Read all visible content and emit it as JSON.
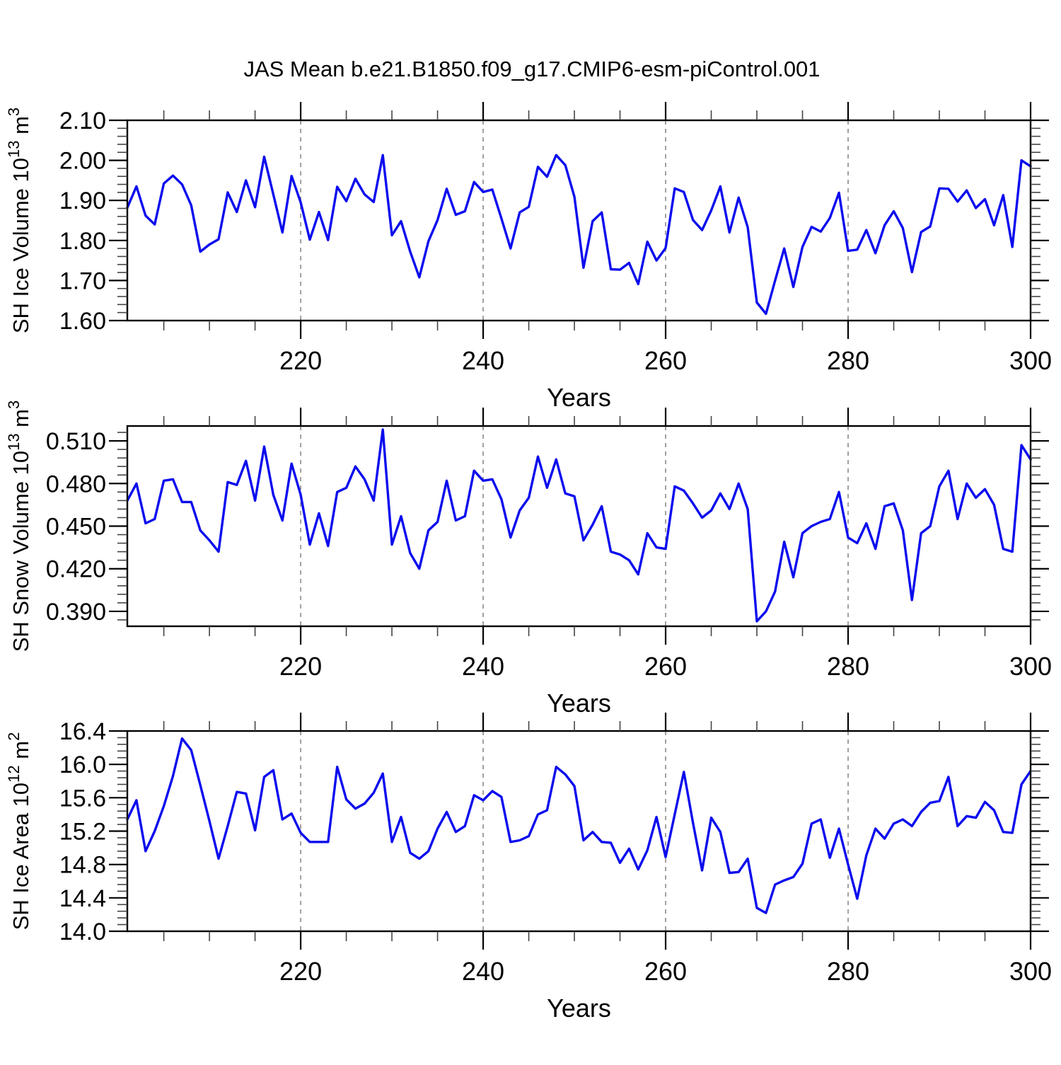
{
  "title": "JAS Mean b.e21.B1850.f09_g17.CMIP6-esm-piControl.001",
  "colors": {
    "line": "#0b0bee",
    "axis": "#000000",
    "minor_tick": "#444444",
    "grid": "#8a8a8a",
    "background": "#ffffff"
  },
  "years": [
    201,
    202,
    203,
    204,
    205,
    206,
    207,
    208,
    209,
    210,
    211,
    212,
    213,
    214,
    215,
    216,
    217,
    218,
    219,
    220,
    221,
    222,
    223,
    224,
    225,
    226,
    227,
    228,
    229,
    230,
    231,
    232,
    233,
    234,
    235,
    236,
    237,
    238,
    239,
    240,
    241,
    242,
    243,
    244,
    245,
    246,
    247,
    248,
    249,
    250,
    251,
    252,
    253,
    254,
    255,
    256,
    257,
    258,
    259,
    260,
    261,
    262,
    263,
    264,
    265,
    266,
    267,
    268,
    269,
    270,
    271,
    272,
    273,
    274,
    275,
    276,
    277,
    278,
    279,
    280,
    281,
    282,
    283,
    284,
    285,
    286,
    287,
    288,
    289,
    290,
    291,
    292,
    293,
    294,
    295,
    296,
    297,
    298,
    299,
    300
  ],
  "chart_data": [
    {
      "type": "line",
      "name": "sh-ice-volume",
      "title": "",
      "xlabel": "Years",
      "ylabel_parts": [
        {
          "t": "SH Ice Volume 10"
        },
        {
          "t": "13",
          "sup": true
        },
        {
          "t": " m"
        },
        {
          "t": "3",
          "sup": true
        }
      ],
      "xlim": [
        201,
        300
      ],
      "ylim": [
        1.6,
        2.1
      ],
      "xticks": [
        220,
        240,
        260,
        280,
        300
      ],
      "xtick_labels": [
        "220",
        "240",
        "260",
        "280",
        "300"
      ],
      "x_minor_step": 5,
      "yticks": [
        1.6,
        1.7,
        1.8,
        1.9,
        2.0,
        2.1
      ],
      "ytick_labels": [
        "1.60",
        "1.70",
        "1.80",
        "1.90",
        "2.00",
        "2.10"
      ],
      "y_minor_step": 0.02,
      "gridlines_x": [
        220,
        240,
        260,
        280
      ],
      "grid": "dashed-vertical",
      "legend": "none",
      "values": [
        1.882,
        1.935,
        1.862,
        1.84,
        1.942,
        1.962,
        1.94,
        1.888,
        1.772,
        1.79,
        1.803,
        1.92,
        1.871,
        1.95,
        1.883,
        2.009,
        1.915,
        1.82,
        1.961,
        1.895,
        1.802,
        1.871,
        1.801,
        1.934,
        1.898,
        1.954,
        1.915,
        1.896,
        2.013,
        1.813,
        1.848,
        1.772,
        1.708,
        1.798,
        1.851,
        1.929,
        1.864,
        1.873,
        1.946,
        1.921,
        1.927,
        1.855,
        1.78,
        1.87,
        1.884,
        1.984,
        1.959,
        2.013,
        1.988,
        1.909,
        1.732,
        1.848,
        1.87,
        1.728,
        1.727,
        1.744,
        1.691,
        1.797,
        1.75,
        1.781,
        1.93,
        1.921,
        1.851,
        1.826,
        1.875,
        1.935,
        1.82,
        1.907,
        1.833,
        1.645,
        1.617,
        1.7,
        1.78,
        1.684,
        1.784,
        1.834,
        1.822,
        1.856,
        1.919,
        1.774,
        1.777,
        1.826,
        1.768,
        1.838,
        1.873,
        1.831,
        1.721,
        1.821,
        1.835,
        1.93,
        1.929,
        1.897,
        1.925,
        1.881,
        1.903,
        1.838,
        1.913,
        1.784,
        2.0,
        1.985
      ]
    },
    {
      "type": "line",
      "name": "sh-snow-volume",
      "title": "",
      "xlabel": "Years",
      "ylabel_parts": [
        {
          "t": "SH Snow Volume 10"
        },
        {
          "t": "13",
          "sup": true
        },
        {
          "t": " m"
        },
        {
          "t": "3",
          "sup": true
        }
      ],
      "xlim": [
        201,
        300
      ],
      "ylim": [
        0.3795,
        0.5205
      ],
      "xticks": [
        220,
        240,
        260,
        280,
        300
      ],
      "xtick_labels": [
        "220",
        "240",
        "260",
        "280",
        "300"
      ],
      "x_minor_step": 5,
      "yticks": [
        0.39,
        0.42,
        0.45,
        0.48,
        0.51
      ],
      "ytick_labels": [
        "0.390",
        "0.420",
        "0.450",
        "0.480",
        "0.510"
      ],
      "y_minor_step": 0.006,
      "gridlines_x": [
        220,
        240,
        260,
        280
      ],
      "grid": "dashed-vertical",
      "legend": "none",
      "values": [
        0.468,
        0.48,
        0.452,
        0.455,
        0.482,
        0.483,
        0.467,
        0.467,
        0.447,
        0.44,
        0.432,
        0.481,
        0.479,
        0.496,
        0.468,
        0.506,
        0.472,
        0.454,
        0.494,
        0.472,
        0.437,
        0.459,
        0.436,
        0.474,
        0.477,
        0.492,
        0.483,
        0.468,
        0.518,
        0.437,
        0.457,
        0.431,
        0.42,
        0.447,
        0.453,
        0.482,
        0.454,
        0.457,
        0.489,
        0.482,
        0.483,
        0.469,
        0.442,
        0.461,
        0.47,
        0.499,
        0.477,
        0.497,
        0.473,
        0.471,
        0.44,
        0.451,
        0.464,
        0.432,
        0.43,
        0.426,
        0.416,
        0.445,
        0.435,
        0.434,
        0.478,
        0.475,
        0.466,
        0.456,
        0.461,
        0.473,
        0.462,
        0.48,
        0.462,
        0.383,
        0.39,
        0.404,
        0.439,
        0.414,
        0.445,
        0.45,
        0.453,
        0.455,
        0.474,
        0.442,
        0.438,
        0.452,
        0.434,
        0.464,
        0.466,
        0.447,
        0.398,
        0.445,
        0.45,
        0.478,
        0.489,
        0.455,
        0.48,
        0.47,
        0.476,
        0.465,
        0.434,
        0.432,
        0.507,
        0.497
      ]
    },
    {
      "type": "line",
      "name": "sh-ice-area",
      "title": "",
      "xlabel": "Years",
      "ylabel_parts": [
        {
          "t": "SH Ice Area 10"
        },
        {
          "t": "12",
          "sup": true
        },
        {
          "t": " m"
        },
        {
          "t": "2",
          "sup": true
        }
      ],
      "xlim": [
        201,
        300
      ],
      "ylim": [
        14.0,
        16.4
      ],
      "xticks": [
        220,
        240,
        260,
        280,
        300
      ],
      "xtick_labels": [
        "220",
        "240",
        "260",
        "280",
        "300"
      ],
      "x_minor_step": 5,
      "yticks": [
        14.0,
        14.4,
        14.8,
        15.2,
        15.6,
        16.0,
        16.4
      ],
      "ytick_labels": [
        "14.0",
        "14.4",
        "14.8",
        "15.2",
        "15.6",
        "16.0",
        "16.4"
      ],
      "y_minor_step": 0.08,
      "gridlines_x": [
        220,
        240,
        260,
        280
      ],
      "grid": "dashed-vertical",
      "legend": "none",
      "values": [
        15.34,
        15.57,
        14.96,
        15.2,
        15.5,
        15.86,
        16.31,
        16.17,
        15.75,
        15.32,
        14.87,
        15.26,
        15.67,
        15.65,
        15.21,
        15.85,
        15.93,
        15.34,
        15.41,
        15.18,
        15.07,
        15.07,
        15.07,
        15.97,
        15.58,
        15.47,
        15.53,
        15.66,
        15.89,
        15.07,
        15.37,
        14.94,
        14.87,
        14.96,
        15.23,
        15.43,
        15.19,
        15.26,
        15.63,
        15.57,
        15.68,
        15.61,
        15.07,
        15.09,
        15.14,
        15.4,
        15.45,
        15.97,
        15.88,
        15.74,
        15.09,
        15.19,
        15.07,
        15.06,
        14.82,
        14.99,
        14.74,
        14.97,
        15.37,
        14.89,
        15.4,
        15.91,
        15.3,
        14.73,
        15.36,
        15.19,
        14.7,
        14.71,
        14.87,
        14.28,
        14.22,
        14.56,
        14.61,
        14.65,
        14.81,
        15.29,
        15.34,
        14.88,
        15.23,
        14.8,
        14.39,
        14.91,
        15.23,
        15.11,
        15.29,
        15.34,
        15.26,
        15.43,
        15.54,
        15.56,
        15.85,
        15.26,
        15.38,
        15.36,
        15.55,
        15.45,
        15.19,
        15.18,
        15.76,
        15.92
      ]
    }
  ]
}
